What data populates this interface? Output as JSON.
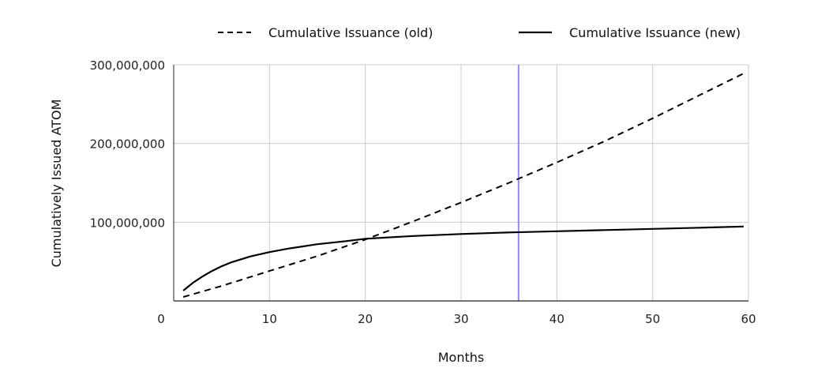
{
  "chart_data": {
    "type": "line",
    "title": "",
    "xlabel": "Months",
    "ylabel": "Cumulatively Issued ATOM",
    "xlim": [
      0,
      60
    ],
    "ylim": [
      0,
      300000000
    ],
    "x_ticks": [
      0,
      10,
      20,
      30,
      40,
      50,
      60
    ],
    "x_tick_labels": [
      "0",
      "10",
      "20",
      "30",
      "40",
      "50",
      "60"
    ],
    "y_ticks": [
      100000000,
      200000000,
      300000000
    ],
    "y_tick_labels": [
      "100,000,000",
      "200,000,000",
      "300,000,000"
    ],
    "grid": true,
    "legend_position": "top",
    "series": [
      {
        "name": "Cumulative Issuance (old)",
        "style": "dashed",
        "color": "#000000",
        "x": [
          1,
          5,
          10,
          15,
          20,
          25,
          30,
          35,
          40,
          45,
          50,
          55,
          59.5
        ],
        "y": [
          5000000,
          19000000,
          38000000,
          57000000,
          78000000,
          101000000,
          125000000,
          150000000,
          176000000,
          203000000,
          232000000,
          262000000,
          289000000
        ]
      },
      {
        "name": "Cumulative Issuance (new)",
        "style": "solid",
        "color": "#000000",
        "x": [
          1,
          2,
          3,
          4,
          5,
          6,
          8,
          10,
          12,
          15,
          18,
          20,
          25,
          30,
          35,
          40,
          45,
          50,
          55,
          59.5
        ],
        "y": [
          13000000,
          23000000,
          31000000,
          38000000,
          44000000,
          49000000,
          56500000,
          62000000,
          66500000,
          72000000,
          76000000,
          79000000,
          82500000,
          85000000,
          87000000,
          88500000,
          90000000,
          91500000,
          93000000,
          94500000
        ]
      }
    ],
    "vertical_line": {
      "x": 36,
      "color": "#9b86f0"
    }
  }
}
